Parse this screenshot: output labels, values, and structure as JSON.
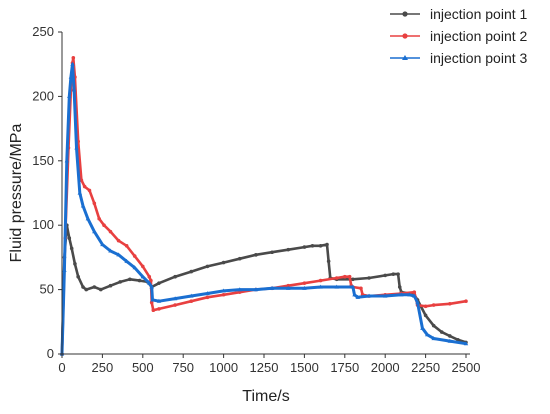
{
  "chart_data": {
    "type": "line",
    "title": "",
    "xlabel": "Time/s",
    "ylabel": "Fluid pressure/MPa",
    "xlim": [
      0,
      2500
    ],
    "ylim": [
      0,
      250
    ],
    "x_ticks": [
      "0",
      "250",
      "500",
      "750",
      "1000",
      "1250",
      "1500",
      "1750",
      "2000",
      "2250",
      "2500"
    ],
    "y_ticks": [
      "0",
      "50",
      "100",
      "150",
      "200",
      "250"
    ],
    "grid": false,
    "legend_position": "top-right",
    "series": [
      {
        "name": "injection point 1",
        "color": "#4a4a4a",
        "marker": "circle",
        "points": [
          [
            0,
            0
          ],
          [
            15,
            75
          ],
          [
            30,
            100
          ],
          [
            45,
            90
          ],
          [
            60,
            82
          ],
          [
            80,
            70
          ],
          [
            100,
            60
          ],
          [
            130,
            52
          ],
          [
            150,
            50
          ],
          [
            200,
            52
          ],
          [
            240,
            50
          ],
          [
            300,
            53
          ],
          [
            360,
            56
          ],
          [
            420,
            58
          ],
          [
            480,
            57
          ],
          [
            530,
            56
          ],
          [
            555,
            52
          ],
          [
            600,
            55
          ],
          [
            700,
            60
          ],
          [
            800,
            64
          ],
          [
            900,
            68
          ],
          [
            1000,
            71
          ],
          [
            1100,
            74
          ],
          [
            1200,
            77
          ],
          [
            1300,
            79
          ],
          [
            1400,
            81
          ],
          [
            1500,
            83
          ],
          [
            1550,
            84
          ],
          [
            1600,
            84
          ],
          [
            1640,
            85
          ],
          [
            1650,
            72
          ],
          [
            1660,
            59
          ],
          [
            1700,
            58
          ],
          [
            1800,
            58
          ],
          [
            1900,
            59
          ],
          [
            2000,
            61
          ],
          [
            2050,
            62
          ],
          [
            2080,
            62
          ],
          [
            2090,
            52
          ],
          [
            2100,
            48
          ],
          [
            2150,
            47
          ],
          [
            2180,
            46
          ],
          [
            2200,
            42
          ],
          [
            2250,
            30
          ],
          [
            2300,
            22
          ],
          [
            2350,
            17
          ],
          [
            2400,
            14
          ],
          [
            2450,
            11
          ],
          [
            2500,
            9
          ]
        ]
      },
      {
        "name": "injection point 2",
        "color": "#e84040",
        "marker": "circle",
        "points": [
          [
            0,
            0
          ],
          [
            20,
            90
          ],
          [
            40,
            160
          ],
          [
            55,
            205
          ],
          [
            65,
            226
          ],
          [
            70,
            230
          ],
          [
            80,
            215
          ],
          [
            100,
            165
          ],
          [
            120,
            135
          ],
          [
            140,
            130
          ],
          [
            170,
            127
          ],
          [
            200,
            117
          ],
          [
            230,
            105
          ],
          [
            260,
            100
          ],
          [
            300,
            95
          ],
          [
            350,
            88
          ],
          [
            400,
            84
          ],
          [
            450,
            76
          ],
          [
            500,
            68
          ],
          [
            540,
            60
          ],
          [
            550,
            57
          ],
          [
            555,
            40
          ],
          [
            565,
            34
          ],
          [
            600,
            35
          ],
          [
            700,
            38
          ],
          [
            800,
            41
          ],
          [
            900,
            44
          ],
          [
            1000,
            46
          ],
          [
            1100,
            48
          ],
          [
            1200,
            50
          ],
          [
            1300,
            51
          ],
          [
            1400,
            53
          ],
          [
            1500,
            55
          ],
          [
            1600,
            57
          ],
          [
            1700,
            59
          ],
          [
            1750,
            60
          ],
          [
            1780,
            60
          ],
          [
            1790,
            53
          ],
          [
            1800,
            52
          ],
          [
            1850,
            51
          ],
          [
            1860,
            46
          ],
          [
            1900,
            45
          ],
          [
            2000,
            46
          ],
          [
            2100,
            47
          ],
          [
            2180,
            48
          ],
          [
            2200,
            38
          ],
          [
            2250,
            37
          ],
          [
            2300,
            38
          ],
          [
            2400,
            39
          ],
          [
            2500,
            41
          ]
        ]
      },
      {
        "name": "injection point 3",
        "color": "#1a6fd1",
        "marker": "triangle",
        "points": [
          [
            0,
            0
          ],
          [
            15,
            65
          ],
          [
            30,
            150
          ],
          [
            45,
            200
          ],
          [
            55,
            215
          ],
          [
            65,
            225
          ],
          [
            75,
            205
          ],
          [
            90,
            160
          ],
          [
            110,
            125
          ],
          [
            130,
            115
          ],
          [
            160,
            105
          ],
          [
            200,
            95
          ],
          [
            250,
            85
          ],
          [
            300,
            80
          ],
          [
            350,
            77
          ],
          [
            400,
            72
          ],
          [
            450,
            67
          ],
          [
            500,
            60
          ],
          [
            540,
            55
          ],
          [
            555,
            52
          ],
          [
            560,
            42
          ],
          [
            600,
            41
          ],
          [
            700,
            43
          ],
          [
            800,
            45
          ],
          [
            900,
            47
          ],
          [
            1000,
            49
          ],
          [
            1100,
            50
          ],
          [
            1200,
            50
          ],
          [
            1300,
            51
          ],
          [
            1400,
            51
          ],
          [
            1500,
            51
          ],
          [
            1600,
            52
          ],
          [
            1700,
            52
          ],
          [
            1800,
            52
          ],
          [
            1810,
            46
          ],
          [
            1830,
            44
          ],
          [
            1900,
            45
          ],
          [
            2000,
            45
          ],
          [
            2100,
            46
          ],
          [
            2150,
            46
          ],
          [
            2180,
            45
          ],
          [
            2200,
            40
          ],
          [
            2230,
            20
          ],
          [
            2260,
            15
          ],
          [
            2300,
            12
          ],
          [
            2400,
            10
          ],
          [
            2500,
            8
          ]
        ]
      }
    ]
  }
}
